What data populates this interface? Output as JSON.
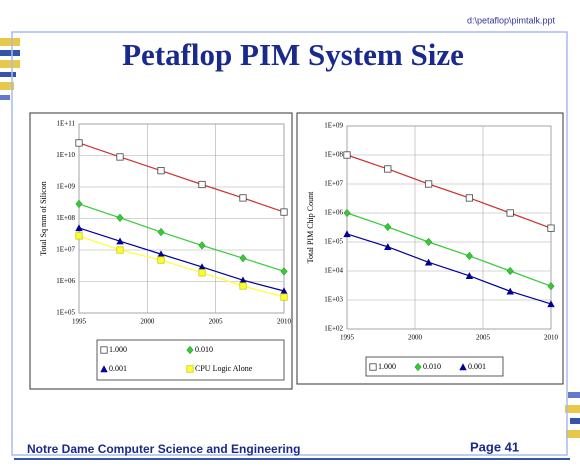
{
  "header": {
    "file": "d:\\petaflop\\pimtalk.ppt",
    "title": "Petaflop PIM System Size"
  },
  "footer": {
    "org": "Notre Dame Computer Science and Engineering",
    "page": "Page 41"
  },
  "chart_data": [
    {
      "type": "line",
      "y_label": "Total Sq mm of Silicon",
      "x": [
        1995,
        1998,
        2001,
        2004,
        2007,
        2010
      ],
      "xlim": [
        1995,
        2010
      ],
      "xticks": [
        1995,
        2000,
        2005,
        2010
      ],
      "ylim": [
        100000.0,
        100000000000.0
      ],
      "yticks": [
        {
          "value": 100000.0,
          "label": "1E+05"
        },
        {
          "value": 1000000.0,
          "label": "1E+06"
        },
        {
          "value": 10000000.0,
          "label": "1E+07"
        },
        {
          "value": 100000000.0,
          "label": "1E+08"
        },
        {
          "value": 1000000000.0,
          "label": "1E+09"
        },
        {
          "value": 10000000000.0,
          "label": "1E+10"
        },
        {
          "value": 100000000000.0,
          "label": "1E+11"
        }
      ],
      "yscale": "log",
      "grid": true,
      "legend": "bottom",
      "series": [
        {
          "name": "1.000",
          "color": "#cc3333",
          "marker": "square-open",
          "values": [
            25000000000.0,
            9000000000.0,
            3300000000.0,
            1200000000.0,
            450000000.0,
            160000000.0
          ]
        },
        {
          "name": "0.010",
          "color": "#33cc33",
          "marker": "diamond",
          "values": [
            290000000.0,
            105000000.0,
            37000000.0,
            14000000.0,
            5500000.0,
            2100000.0
          ]
        },
        {
          "name": "0.001",
          "color": "#000099",
          "marker": "triangle",
          "values": [
            50000000.0,
            19000000.0,
            7400000.0,
            2900000.0,
            1100000.0,
            500000.0
          ]
        },
        {
          "name": "CPU Logic Alone",
          "color": "#ffff33",
          "marker": "square",
          "values": [
            28000000.0,
            10000000.0,
            4800000.0,
            1900000.0,
            720000.0,
            320000.0
          ]
        }
      ]
    },
    {
      "type": "line",
      "y_label": "Total PIM Chip Count",
      "x": [
        1995,
        1998,
        2001,
        2004,
        2007,
        2010
      ],
      "xlim": [
        1995,
        2010
      ],
      "xticks": [
        1995,
        2000,
        2005,
        2010
      ],
      "ylim": [
        100.0,
        1000000000.0
      ],
      "yticks": [
        {
          "value": 100.0,
          "label": "1E+02"
        },
        {
          "value": 1000.0,
          "label": "1E+03"
        },
        {
          "value": 10000.0,
          "label": "1E+04"
        },
        {
          "value": 100000.0,
          "label": "1E+05"
        },
        {
          "value": 1000000.0,
          "label": "1E+06"
        },
        {
          "value": 10000000.0,
          "label": "1E+07"
        },
        {
          "value": 100000000.0,
          "label": "1E+08"
        },
        {
          "value": 1000000000.0,
          "label": "1E+09"
        }
      ],
      "yscale": "log",
      "grid": true,
      "legend": "bottom",
      "series": [
        {
          "name": "1.000",
          "color": "#cc3333",
          "marker": "square-open",
          "values": [
            100000000.0,
            33000000.0,
            10000000.0,
            3300000.0,
            1000000.0,
            300000.0
          ]
        },
        {
          "name": "0.010",
          "color": "#33cc33",
          "marker": "diamond",
          "values": [
            1000000.0,
            330000.0,
            100000.0,
            33000.0,
            10000.0,
            3000.0
          ]
        },
        {
          "name": "0.001",
          "color": "#000099",
          "marker": "triangle",
          "values": [
            190000.0,
            68000.0,
            20000.0,
            6800.0,
            2000.0,
            730
          ]
        }
      ]
    }
  ]
}
